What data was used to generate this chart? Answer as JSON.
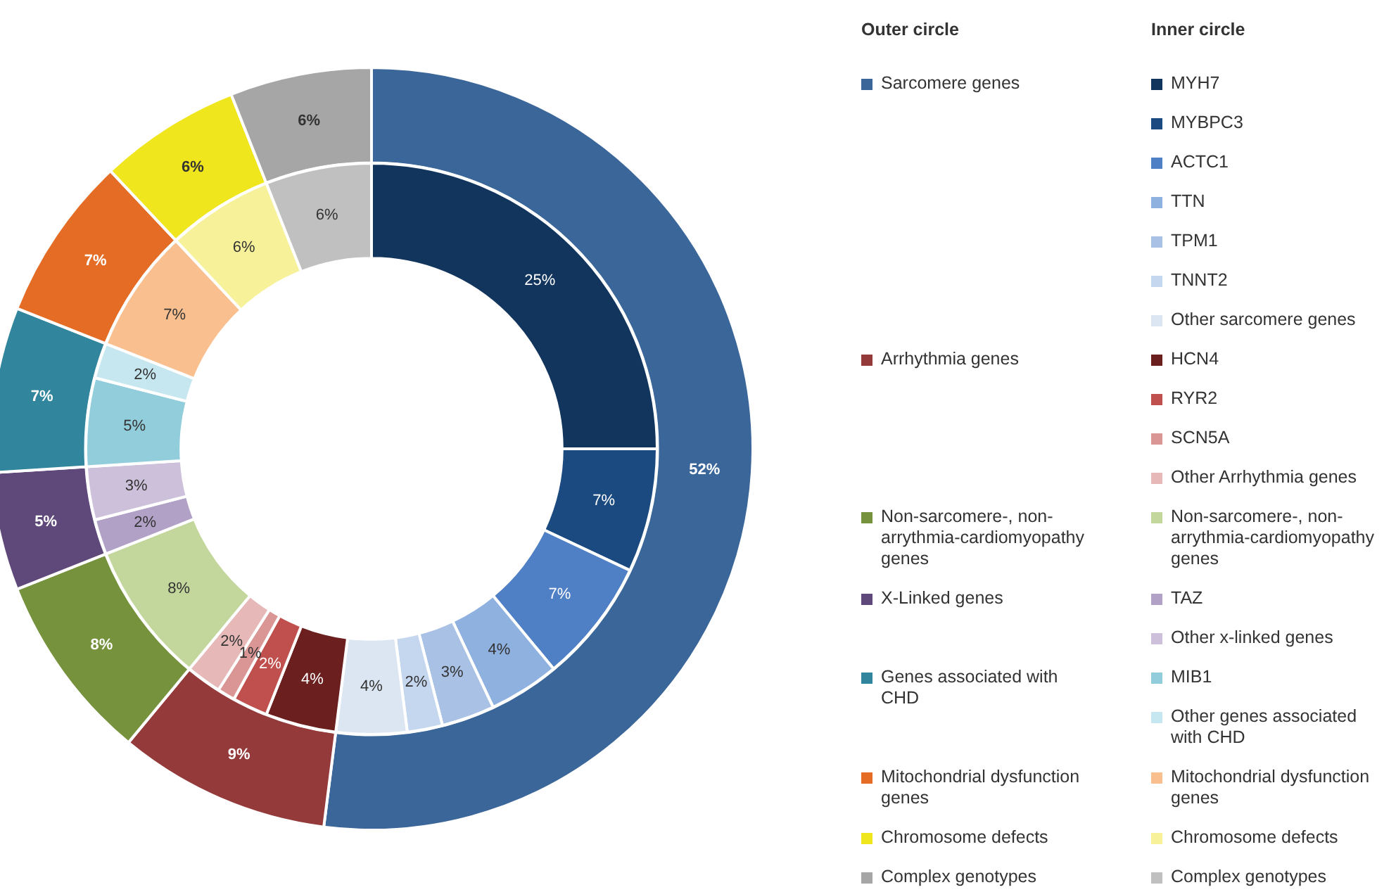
{
  "chart_data": [
    {
      "type": "donut",
      "legend": "right",
      "legend_title": "Outer circle",
      "categories": [
        "Sarcomere genes",
        "Arrhythmia genes",
        "Non-sarcomere-, non-arrythmia-cardiomyopathy genes",
        "X-Linked genes",
        "Genes associated with CHD",
        "Mitochondrial dysfunction genes",
        "Chromosome defects",
        "Complex genotypes"
      ],
      "values": [
        52,
        9,
        8,
        5,
        7,
        7,
        6,
        6
      ],
      "value_labels": [
        "52%",
        "9%",
        "8%",
        "5%",
        "7%",
        "7%",
        "6%",
        "6%"
      ],
      "colors": [
        "#3b6699",
        "#943a3a",
        "#76923c",
        "#5f497a",
        "#31859c",
        "#e46c24",
        "#f0e61e",
        "#a6a6a6"
      ]
    },
    {
      "type": "donut",
      "legend": "right",
      "legend_title": "Inner circle",
      "categories": [
        "MYH7",
        "MYBPC3",
        "ACTC1",
        "TTN",
        "TPM1",
        "TNNT2",
        "Other sarcomere genes",
        "HCN4",
        "RYR2",
        "SCN5A",
        "Other Arrhythmia genes",
        "Non-sarcomere-, non-arrythmia-cardiomyopathy genes",
        "TAZ",
        "Other x-linked genes",
        "MIB1",
        "Other genes associated with CHD",
        "Mitochondrial dysfunction genes",
        "Chromosome defects",
        "Complex genotypes"
      ],
      "values": [
        25,
        7,
        7,
        4,
        3,
        2,
        4,
        4,
        2,
        1,
        2,
        8,
        2,
        3,
        5,
        2,
        7,
        6,
        6
      ],
      "value_labels": [
        "25%",
        "7%",
        "7%",
        "4%",
        "3%",
        "2%",
        "4%",
        "4%",
        "2%",
        "1%",
        "2%",
        "8%",
        "2%",
        "3%",
        "5%",
        "2%",
        "7%",
        "6%",
        "6%"
      ],
      "colors": [
        "#12355e",
        "#1b4a80",
        "#4f7fc4",
        "#8fb1e0",
        "#a9c1e4",
        "#c5d6ef",
        "#dce6f2",
        "#6b1f1f",
        "#c0504d",
        "#d99694",
        "#e6b9b8",
        "#c3d69b",
        "#b2a1c7",
        "#ccc0da",
        "#92cddc",
        "#c6e7ef",
        "#fabf8f",
        "#f7f29a",
        "#c0c0c0"
      ]
    }
  ]
}
